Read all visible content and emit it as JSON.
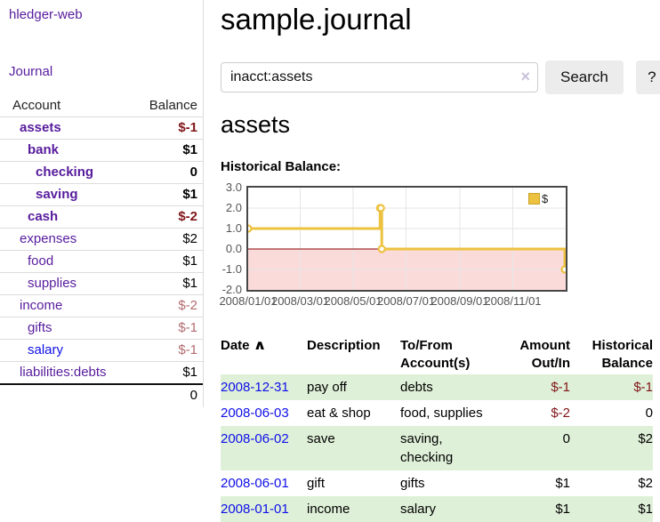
{
  "app": {
    "title": "hledger-web"
  },
  "nav": {
    "journal_label": "Journal"
  },
  "icons": {
    "sort_ascending": "∧",
    "clear_search": "×"
  },
  "colors": {
    "link_purple": "#571c9d",
    "link_blue": "#0f0fe8",
    "negative": "#801518",
    "negative_muted": "#b36b70",
    "row_green": "#dff0d8",
    "chart_line_yellow": "#edc240",
    "chart_negative_region_pink": "#fbdada",
    "chart_zero_line_red": "#8b0000"
  },
  "sidebar": {
    "header": {
      "account": "Account",
      "balance": "Balance"
    },
    "accounts": [
      {
        "name": "assets",
        "indent": 1,
        "bold": true,
        "balance": "$-1",
        "negative": "strong"
      },
      {
        "name": "bank",
        "indent": 2,
        "bold": true,
        "balance": "$1"
      },
      {
        "name": "checking",
        "indent": 3,
        "bold": true,
        "balance": "0"
      },
      {
        "name": "saving",
        "indent": 3,
        "bold": true,
        "balance": "$1"
      },
      {
        "name": "cash",
        "indent": 2,
        "bold": true,
        "balance": "$-2",
        "negative": "strong"
      },
      {
        "name": "expenses",
        "indent": 1,
        "bold": false,
        "balance": "$2"
      },
      {
        "name": "food",
        "indent": 2,
        "bold": false,
        "balance": "$1"
      },
      {
        "name": "supplies",
        "indent": 2,
        "bold": false,
        "balance": "$1"
      },
      {
        "name": "income",
        "indent": 1,
        "bold": false,
        "balance": "$-2",
        "negative": "muted"
      },
      {
        "name": "gifts",
        "indent": 2,
        "bold": false,
        "balance": "$-1",
        "negative": "muted"
      },
      {
        "name": "salary",
        "indent": 2,
        "bold": false,
        "balance": "$-1",
        "negative": "muted",
        "unvisited": true
      },
      {
        "name": "liabilities:debts",
        "indent": 1,
        "bold": false,
        "balance": "$1"
      }
    ],
    "total": "0"
  },
  "main": {
    "title": "sample.journal",
    "search": {
      "value": "inacct:assets",
      "button_label": "Search",
      "help_label": "?"
    },
    "account_heading": "assets",
    "chart_heading": "Historical Balance:"
  },
  "chart_data": {
    "type": "line",
    "step": true,
    "title": "Historical Balance:",
    "series": [
      {
        "name": "$",
        "color": "#edc240",
        "points": [
          [
            "2008-01-01",
            1
          ],
          [
            "2008-06-01",
            2
          ],
          [
            "2008-06-02",
            2
          ],
          [
            "2008-06-03",
            0
          ],
          [
            "2008-12-31",
            -1
          ]
        ]
      }
    ],
    "xlim": [
      "2008-01-01",
      "2009-01-01"
    ],
    "ylim": [
      -2,
      3
    ],
    "x_ticks": [
      "2008/01/01",
      "2008/03/01",
      "2008/05/01",
      "2008/07/01",
      "2008/09/01",
      "2008/11/01"
    ],
    "y_ticks": [
      3.0,
      2.0,
      1.0,
      0.0,
      -1.0,
      -2.0
    ],
    "grid": true,
    "legend": {
      "label": "$",
      "position": "top-right"
    },
    "negative_region_shaded": true
  },
  "register": {
    "headers": [
      {
        "label": "Date",
        "sortable": true
      },
      {
        "label": "Description"
      },
      {
        "label": "To/From Account(s)"
      },
      {
        "label": "Amount Out/In",
        "align": "right"
      },
      {
        "label": "Historical Balance",
        "align": "right"
      }
    ],
    "rows": [
      {
        "date": "2008-12-31",
        "description": "pay off",
        "accounts": "debts",
        "amount": "$-1",
        "amount_negative": true,
        "balance": "$-1",
        "balance_negative": true,
        "green": true
      },
      {
        "date": "2008-06-03",
        "description": "eat & shop",
        "accounts": "food, supplies",
        "amount": "$-2",
        "amount_negative": true,
        "balance": "0",
        "balance_negative": false,
        "green": false
      },
      {
        "date": "2008-06-02",
        "description": "save",
        "accounts": "saving, checking",
        "amount": "0",
        "amount_negative": false,
        "balance": "$2",
        "balance_negative": false,
        "green": true
      },
      {
        "date": "2008-06-01",
        "description": "gift",
        "accounts": "gifts",
        "amount": "$1",
        "amount_negative": false,
        "balance": "$2",
        "balance_negative": false,
        "green": false
      },
      {
        "date": "2008-01-01",
        "description": "income",
        "accounts": "salary",
        "amount": "$1",
        "amount_negative": false,
        "balance": "$1",
        "balance_negative": false,
        "green": true
      }
    ]
  }
}
